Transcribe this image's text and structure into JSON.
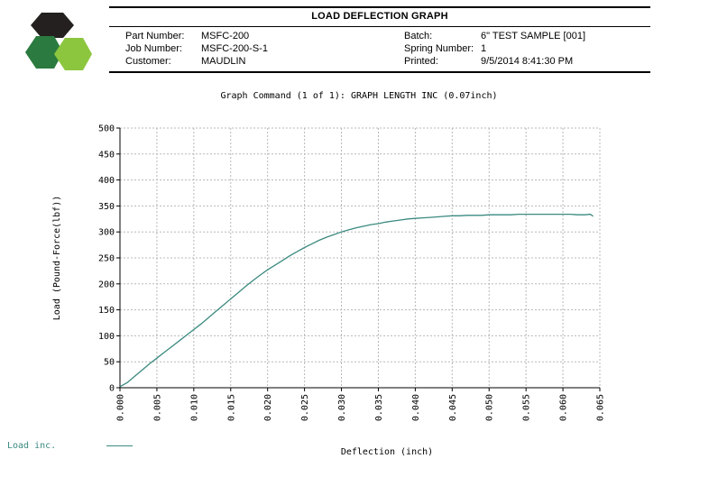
{
  "header": {
    "title": "LOAD DEFLECTION GRAPH",
    "part_number_label": "Part Number:",
    "part_number": "MSFC-200",
    "job_number_label": "Job Number:",
    "job_number": "MSFC-200-S-1",
    "customer_label": "Customer:",
    "customer": "MAUDLIN",
    "batch_label": "Batch:",
    "batch": "6\" TEST SAMPLE [001]",
    "spring_number_label": "Spring Number:",
    "spring_number": "1",
    "printed_label": "Printed:",
    "printed": "9/5/2014 8:41:30 PM"
  },
  "colors": {
    "series": "#3a8a80",
    "grid": "#b8b8b8",
    "logo_dark": "#23201f",
    "logo_green": "#2b7a3f",
    "logo_lime": "#8cc63f"
  },
  "chart_data": {
    "type": "line",
    "title": "Graph Command (1 of 1): GRAPH LENGTH INC (0.07inch)",
    "xlabel": "Deflection (inch)",
    "ylabel": "Load (Pound-Force(lbf))",
    "xlim": [
      0,
      0.065
    ],
    "ylim": [
      0,
      500
    ],
    "x_ticks": [
      "0.000",
      "0.005",
      "0.010",
      "0.015",
      "0.020",
      "0.025",
      "0.030",
      "0.035",
      "0.040",
      "0.045",
      "0.050",
      "0.055",
      "0.060",
      "0.065"
    ],
    "y_ticks": [
      "0",
      "50",
      "100",
      "150",
      "200",
      "250",
      "300",
      "350",
      "400",
      "450",
      "500"
    ],
    "grid": true,
    "legend_position": "bottom-left",
    "series": [
      {
        "name": "Load inc.",
        "x": [
          0.0,
          0.001,
          0.002,
          0.003,
          0.004,
          0.005,
          0.006,
          0.007,
          0.008,
          0.009,
          0.01,
          0.011,
          0.012,
          0.013,
          0.014,
          0.015,
          0.016,
          0.017,
          0.018,
          0.019,
          0.02,
          0.021,
          0.022,
          0.023,
          0.024,
          0.025,
          0.026,
          0.027,
          0.028,
          0.029,
          0.03,
          0.031,
          0.032,
          0.033,
          0.034,
          0.035,
          0.036,
          0.037,
          0.038,
          0.039,
          0.04,
          0.041,
          0.042,
          0.043,
          0.044,
          0.045,
          0.046,
          0.047,
          0.048,
          0.049,
          0.05,
          0.051,
          0.052,
          0.053,
          0.054,
          0.055,
          0.056,
          0.057,
          0.058,
          0.059,
          0.06,
          0.061,
          0.062,
          0.063,
          0.0637,
          0.0641
        ],
        "y": [
          2,
          10,
          22,
          34,
          46,
          57,
          68,
          79,
          90,
          101,
          112,
          123,
          135,
          147,
          159,
          171,
          183,
          195,
          206,
          217,
          227,
          236,
          245,
          254,
          262,
          270,
          277,
          284,
          290,
          295,
          300,
          304,
          308,
          311,
          314,
          316,
          319,
          321,
          323,
          325,
          326,
          327,
          328,
          329,
          330,
          331,
          331,
          332,
          332,
          332,
          333,
          333,
          333,
          333,
          334,
          334,
          334,
          334,
          334,
          334,
          334,
          334,
          333,
          333,
          334,
          330
        ]
      }
    ]
  }
}
